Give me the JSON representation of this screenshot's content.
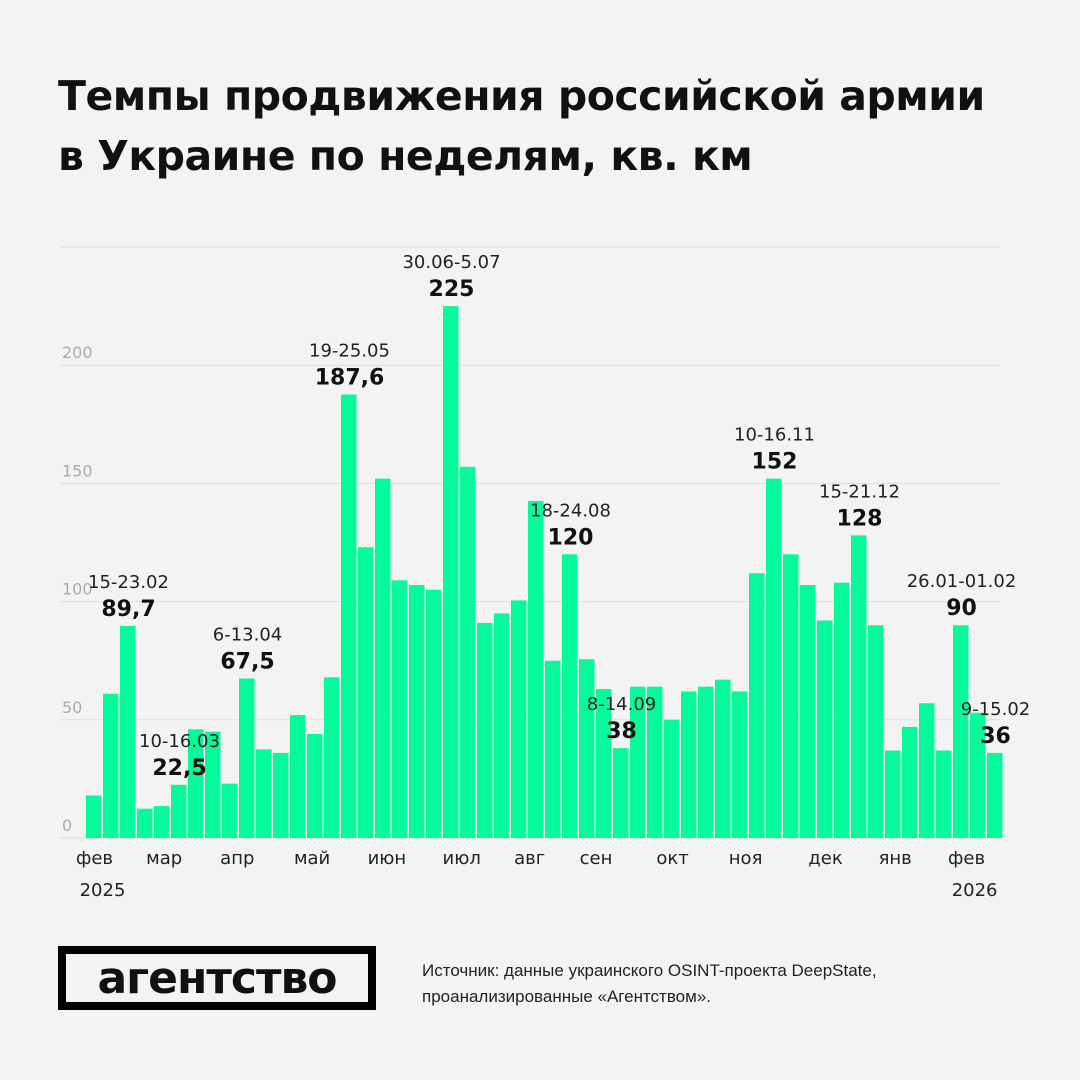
{
  "title": "Темпы продвижения российской армии в Украине по неделям, кв. км",
  "logo": "агентство",
  "source": {
    "line1": "Источник: данные украинского OSINT-проекта DeepState,",
    "line2": "проанализированные «Агентством»."
  },
  "colors": {
    "bar": "#06F99A",
    "background": "#F3F3F3",
    "grid": "#DDDDDD"
  },
  "chart_data": {
    "type": "bar",
    "title": "Темпы продвижения российской армии в Украине по неделям, кв. км",
    "xlabel": "",
    "ylabel": "",
    "ylim": [
      0,
      250
    ],
    "yticks": [
      0,
      50,
      100,
      150,
      200,
      250
    ],
    "ytick_labels": [
      "0",
      "50",
      "100",
      "150",
      "200",
      ""
    ],
    "grid": true,
    "values": [
      18,
      61,
      89.7,
      12.4,
      13.5,
      22.5,
      46,
      45,
      23,
      67.5,
      37.5,
      36,
      52,
      44,
      68,
      187.6,
      123,
      152,
      109,
      107,
      105,
      225,
      157,
      91,
      95,
      100.5,
      142.6,
      75,
      120,
      75.6,
      63,
      38,
      64,
      64,
      50,
      62,
      64,
      67,
      62,
      112,
      152,
      120,
      107,
      92,
      108,
      128,
      90,
      37,
      47,
      57,
      37,
      90,
      53,
      36
    ],
    "month_ticks": [
      {
        "week": 0.5,
        "label": "фев",
        "year": "2025"
      },
      {
        "week": 4.6,
        "label": "мар"
      },
      {
        "week": 8.9,
        "label": "апр"
      },
      {
        "week": 13.3,
        "label": "май"
      },
      {
        "week": 17.7,
        "label": "июн"
      },
      {
        "week": 22.1,
        "label": "июл"
      },
      {
        "week": 26.1,
        "label": "авг"
      },
      {
        "week": 30,
        "label": "сен"
      },
      {
        "week": 34.5,
        "label": "окт"
      },
      {
        "week": 38.8,
        "label": "ноя"
      },
      {
        "week": 43.5,
        "label": "дек"
      },
      {
        "week": 47.6,
        "label": "янв"
      },
      {
        "week": 51.8,
        "label": "фев",
        "year": "2026"
      }
    ],
    "annotations": [
      {
        "week": 2,
        "period": "15-23.02",
        "value": "89,7"
      },
      {
        "week": 5,
        "period": "10-16.03",
        "value": "22,5"
      },
      {
        "week": 9,
        "period": "6-13.04",
        "value": "67,5"
      },
      {
        "week": 15,
        "period": "19-25.05",
        "value": "187,6"
      },
      {
        "week": 21,
        "period": "30.06-5.07",
        "value": "225"
      },
      {
        "week": 28,
        "period": "18-24.08",
        "value": "120"
      },
      {
        "week": 31,
        "period": "8-14.09",
        "value": "38"
      },
      {
        "week": 40,
        "period": "10-16.11",
        "value": "152"
      },
      {
        "week": 45,
        "period": "15-21.12",
        "value": "128"
      },
      {
        "week": 51,
        "period": "26.01-01.02",
        "value": "90"
      },
      {
        "week": 53,
        "period": "9-15.02",
        "value": "36"
      }
    ]
  }
}
